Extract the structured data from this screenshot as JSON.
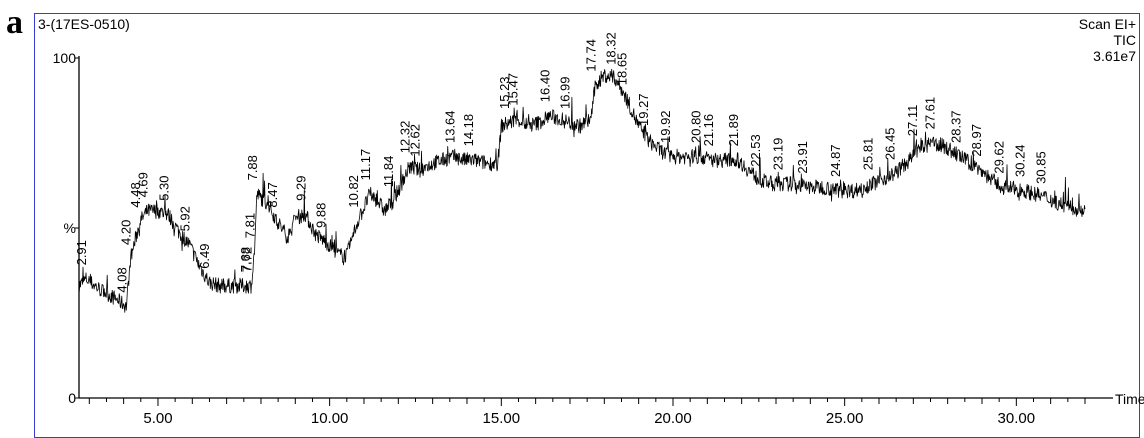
{
  "panel_label": "a",
  "header": {
    "sample_id": "3-(17ES-0510)",
    "scan_mode": "Scan  EI+",
    "trace": "TIC",
    "intensity": "3.61e7"
  },
  "chart_data": {
    "type": "line",
    "title": "",
    "xlabel": "Time",
    "ylabel": "%",
    "xlim": [
      2.7,
      32.0
    ],
    "ylim": [
      0,
      100
    ],
    "x_ticks": [
      5.0,
      10.0,
      15.0,
      20.0,
      25.0,
      30.0
    ],
    "x_tick_labels": [
      "5.00",
      "10.00",
      "15.00",
      "20.00",
      "25.00",
      "30.00"
    ],
    "y_tick_labels": [
      {
        "value": 100,
        "label": "100"
      },
      {
        "value": 50,
        "label": "%"
      },
      {
        "value": 0,
        "label": "0"
      }
    ],
    "grid": false,
    "series": [
      {
        "x": [
          2.7,
          2.91,
          3.3,
          3.8,
          4.08,
          4.2,
          4.48,
          4.69,
          5.0,
          5.3,
          5.6,
          5.92,
          6.2,
          6.49,
          6.8,
          7.2,
          7.68,
          7.72,
          7.81,
          7.88,
          8.2,
          8.47,
          8.8,
          9.0,
          9.29,
          9.6,
          9.88,
          10.3,
          10.5,
          10.82,
          11.0,
          11.17,
          11.4,
          11.6,
          11.84,
          12.0,
          12.32,
          12.62,
          13.0,
          13.3,
          13.64,
          13.9,
          14.18,
          14.6,
          14.9,
          15.0,
          15.23,
          15.47,
          15.8,
          16.1,
          16.4,
          16.7,
          16.99,
          17.3,
          17.6,
          17.74,
          18.0,
          18.32,
          18.65,
          19.0,
          19.27,
          19.6,
          19.92,
          20.3,
          20.8,
          21.16,
          21.5,
          21.89,
          22.2,
          22.53,
          22.9,
          23.19,
          23.6,
          23.91,
          24.4,
          24.87,
          25.3,
          25.81,
          26.45,
          26.9,
          27.11,
          27.61,
          27.9,
          28.37,
          28.97,
          29.3,
          29.62,
          30.24,
          30.85,
          31.3,
          31.6,
          32.0
        ],
        "y": [
          33,
          35,
          32,
          29,
          27,
          41,
          52,
          55,
          55,
          54,
          49,
          45,
          39,
          34,
          33,
          33,
          33,
          33,
          43,
          60,
          57,
          52,
          47,
          53,
          54,
          48,
          46,
          42,
          42,
          52,
          56,
          60,
          58,
          55,
          58,
          61,
          68,
          67,
          69,
          70,
          71,
          70,
          70,
          69,
          69,
          80,
          81,
          82,
          80,
          81,
          83,
          82,
          81,
          80,
          82,
          92,
          95,
          94,
          88,
          80,
          76,
          73,
          71,
          71,
          71,
          70,
          70,
          70,
          67,
          64,
          63,
          63,
          63,
          62,
          62,
          61,
          61,
          63,
          66,
          70,
          73,
          75,
          74,
          71,
          67,
          64,
          62,
          61,
          59,
          57,
          56,
          55
        ]
      }
    ],
    "peak_labels": [
      "2.91",
      "4.08",
      "4.20",
      "4.48",
      "4.69",
      "5.30",
      "5.92",
      "6.49",
      "7.68",
      "7.72",
      "7.81",
      "7.88",
      "8.47",
      "9.29",
      "9.88",
      "10.82",
      "11.17",
      "11.84",
      "12.32",
      "12.62",
      "13.64",
      "14.18",
      "15.23",
      "15.47",
      "16.40",
      "16.99",
      "17.74",
      "18.32",
      "18.65",
      "19.27",
      "19.92",
      "20.80",
      "21.16",
      "21.89",
      "22.53",
      "23.19",
      "23.91",
      "24.87",
      "25.81",
      "26.45",
      "27.11",
      "27.61",
      "28.37",
      "28.97",
      "29.62",
      "30.24",
      "30.85"
    ]
  }
}
